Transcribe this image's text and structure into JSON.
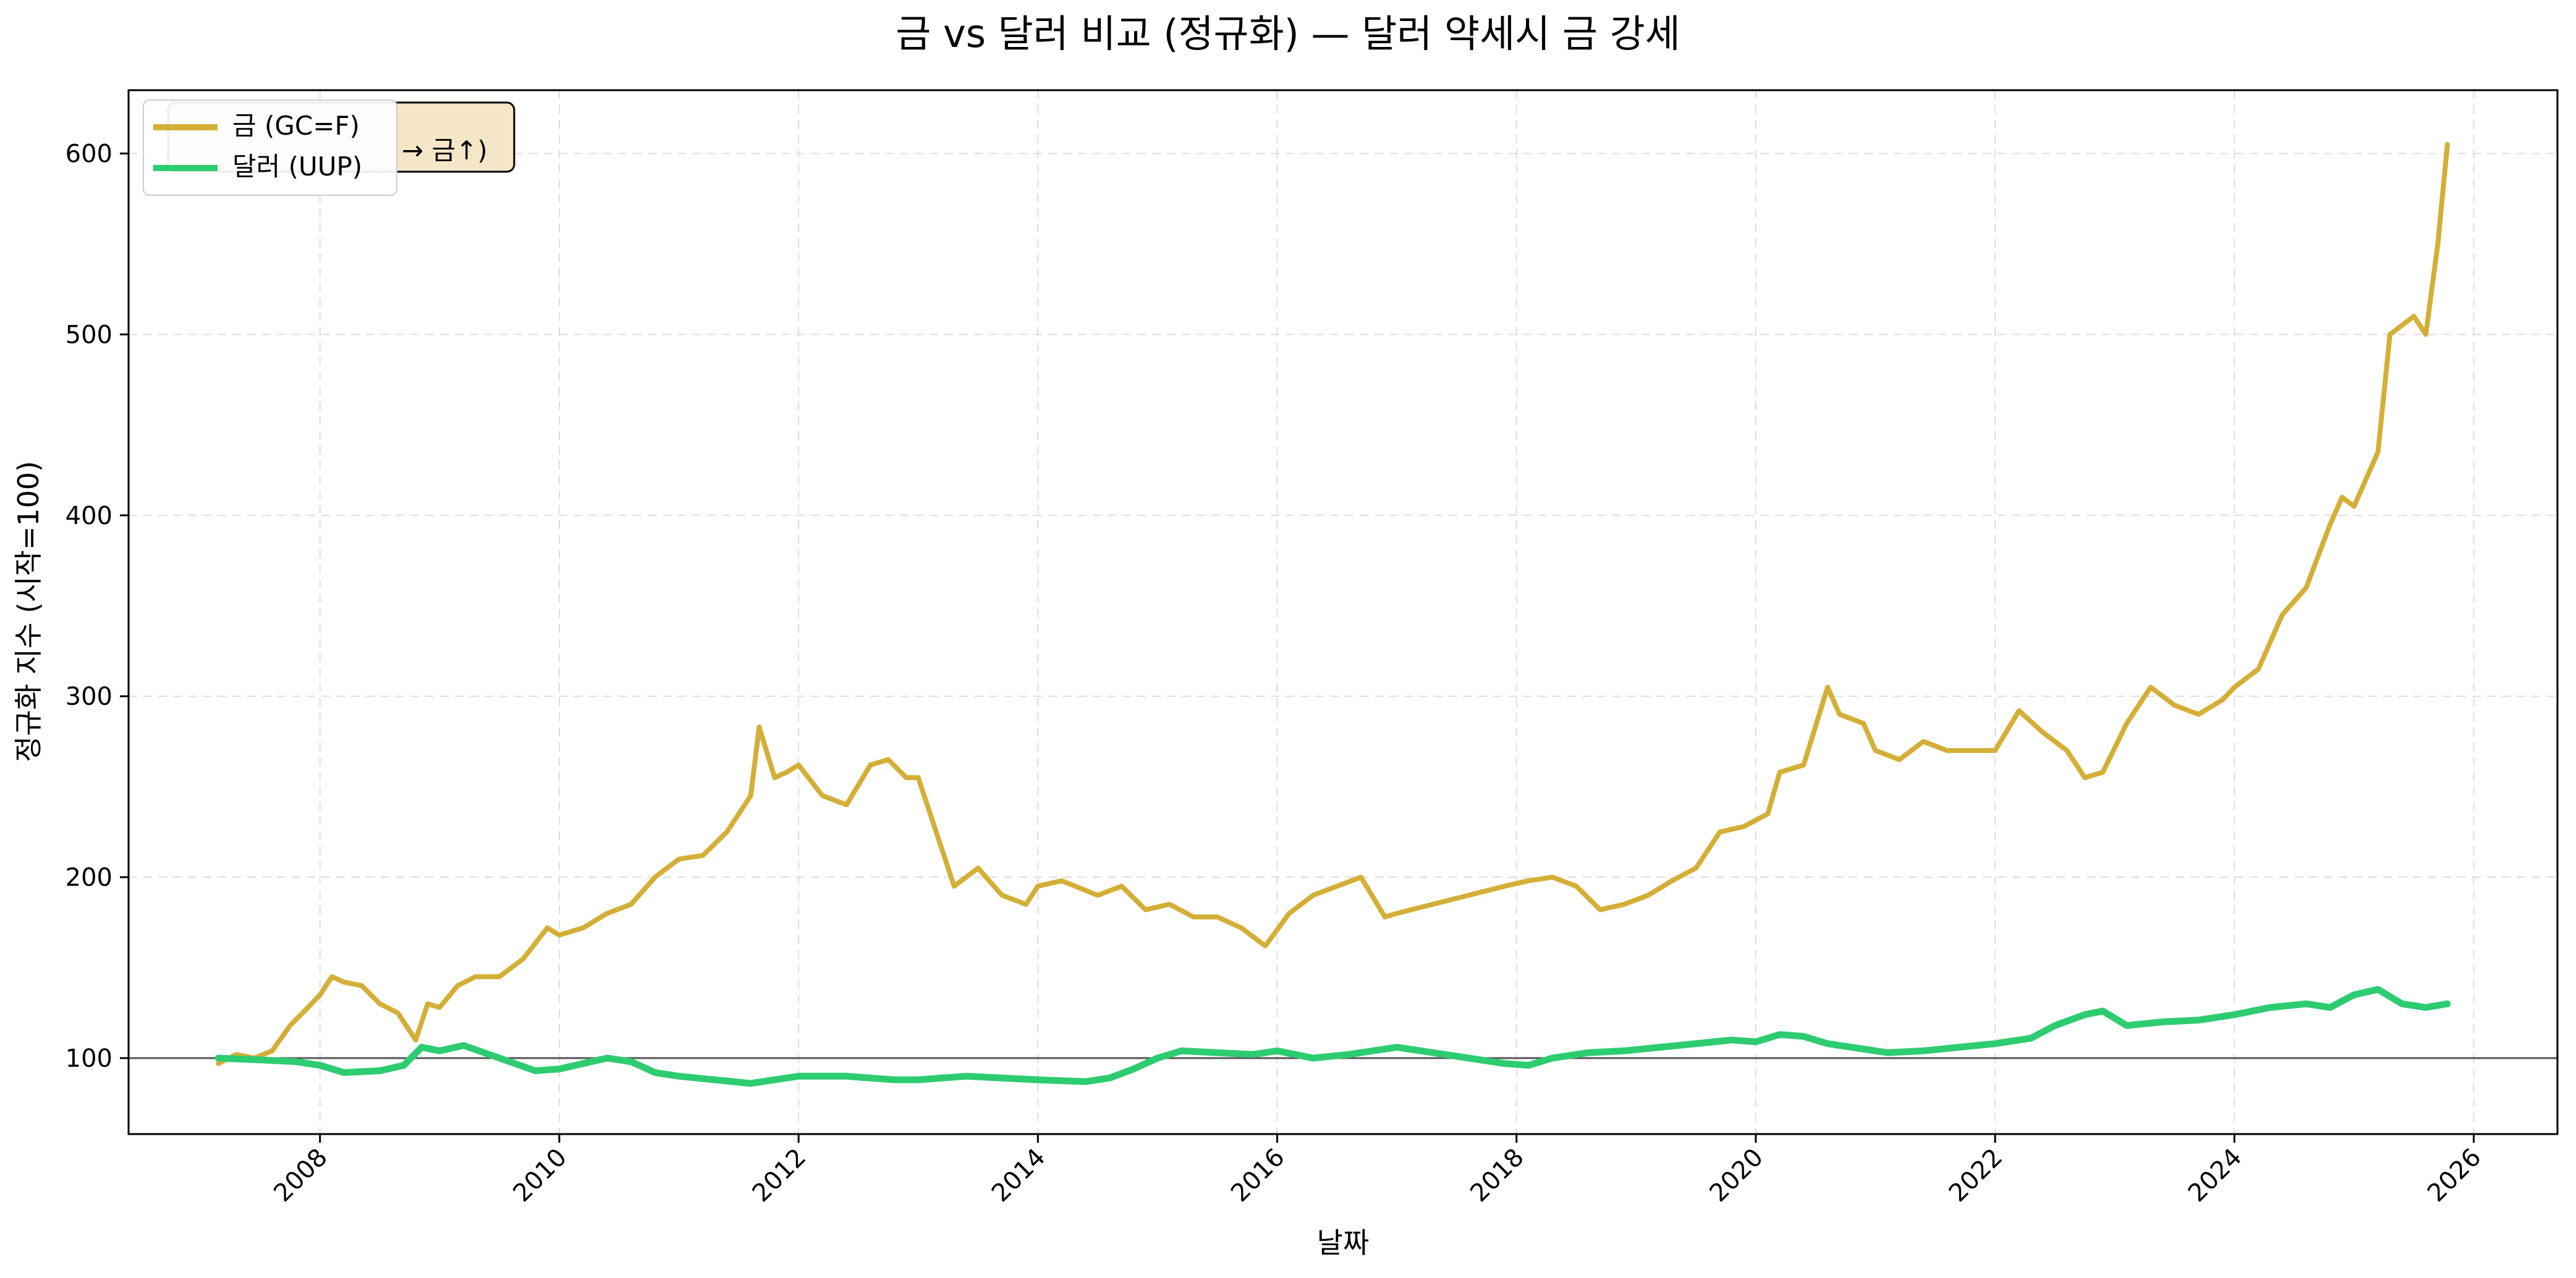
{
  "chart_data": {
    "type": "line",
    "title": "금 vs 달러 비교 (정규화) — 달러 약세시 금 강세",
    "xlabel": "날짜",
    "ylabel": "정규화 지수 (시작=100)",
    "xlim": [
      2006.4,
      2026.7
    ],
    "ylim": [
      58,
      635
    ],
    "x_ticks": [
      "2008",
      "2010",
      "2012",
      "2014",
      "2016",
      "2018",
      "2020",
      "2022",
      "2024",
      "2026"
    ],
    "y_ticks": [
      100,
      200,
      300,
      400,
      500,
      600
    ],
    "grid": true,
    "legend_position": "top-left",
    "reference_line": 100,
    "annotation": "→ 금↑)",
    "series": [
      {
        "name": "금 (GC=F)",
        "color": "#D4AF37",
        "x": [
          2007.15,
          2007.3,
          2007.45,
          2007.6,
          2007.75,
          2007.9,
          2008.0,
          2008.1,
          2008.2,
          2008.35,
          2008.5,
          2008.65,
          2008.8,
          2008.9,
          2009.0,
          2009.15,
          2009.3,
          2009.5,
          2009.7,
          2009.9,
          2010.0,
          2010.2,
          2010.4,
          2010.6,
          2010.8,
          2011.0,
          2011.2,
          2011.4,
          2011.6,
          2011.67,
          2011.8,
          2011.9,
          2012.0,
          2012.2,
          2012.4,
          2012.6,
          2012.75,
          2012.9,
          2013.0,
          2013.2,
          2013.3,
          2013.5,
          2013.7,
          2013.9,
          2014.0,
          2014.2,
          2014.5,
          2014.7,
          2014.9,
          2015.1,
          2015.3,
          2015.5,
          2015.7,
          2015.9,
          2016.1,
          2016.3,
          2016.5,
          2016.7,
          2016.9,
          2017.0,
          2017.3,
          2017.6,
          2017.9,
          2018.1,
          2018.3,
          2018.5,
          2018.7,
          2018.9,
          2019.1,
          2019.3,
          2019.5,
          2019.7,
          2019.9,
          2020.1,
          2020.2,
          2020.4,
          2020.6,
          2020.7,
          2020.9,
          2021.0,
          2021.2,
          2021.4,
          2021.6,
          2021.8,
          2022.0,
          2022.2,
          2022.4,
          2022.6,
          2022.75,
          2022.9,
          2023.1,
          2023.3,
          2023.5,
          2023.7,
          2023.9,
          2024.0,
          2024.2,
          2024.4,
          2024.6,
          2024.8,
          2024.9,
          2025.0,
          2025.2,
          2025.3,
          2025.5,
          2025.6,
          2025.7,
          2025.78
        ],
        "values": [
          97,
          102,
          100,
          104,
          118,
          128,
          135,
          145,
          142,
          140,
          130,
          125,
          110,
          130,
          128,
          140,
          145,
          145,
          155,
          172,
          168,
          172,
          180,
          185,
          200,
          210,
          212,
          225,
          245,
          283,
          255,
          258,
          262,
          245,
          240,
          262,
          265,
          255,
          255,
          215,
          195,
          205,
          190,
          185,
          195,
          198,
          190,
          195,
          182,
          185,
          178,
          178,
          172,
          162,
          180,
          190,
          195,
          200,
          178,
          180,
          185,
          190,
          195,
          198,
          200,
          195,
          182,
          185,
          190,
          198,
          205,
          225,
          228,
          235,
          258,
          262,
          305,
          290,
          285,
          270,
          265,
          275,
          270,
          270,
          270,
          292,
          280,
          270,
          255,
          258,
          285,
          305,
          295,
          290,
          298,
          305,
          315,
          345,
          360,
          395,
          410,
          405,
          435,
          500,
          510,
          500,
          550,
          605
        ]
      },
      {
        "name": "달러 (UUP)",
        "color": "#2ECC71",
        "x": [
          2007.15,
          2007.5,
          2007.8,
          2008.0,
          2008.2,
          2008.5,
          2008.7,
          2008.85,
          2009.0,
          2009.2,
          2009.5,
          2009.8,
          2010.0,
          2010.2,
          2010.4,
          2010.6,
          2010.8,
          2011.0,
          2011.3,
          2011.6,
          2011.8,
          2012.0,
          2012.4,
          2012.8,
          2013.0,
          2013.4,
          2013.7,
          2014.0,
          2014.4,
          2014.6,
          2014.8,
          2015.0,
          2015.2,
          2015.5,
          2015.8,
          2016.0,
          2016.3,
          2016.6,
          2016.9,
          2017.0,
          2017.3,
          2017.6,
          2017.9,
          2018.1,
          2018.3,
          2018.6,
          2018.9,
          2019.2,
          2019.5,
          2019.8,
          2020.0,
          2020.2,
          2020.4,
          2020.6,
          2020.9,
          2021.1,
          2021.4,
          2021.7,
          2022.0,
          2022.3,
          2022.5,
          2022.75,
          2022.9,
          2023.1,
          2023.4,
          2023.7,
          2024.0,
          2024.3,
          2024.6,
          2024.8,
          2025.0,
          2025.2,
          2025.4,
          2025.6,
          2025.78
        ],
        "values": [
          100,
          99,
          98,
          96,
          92,
          93,
          96,
          106,
          104,
          107,
          100,
          93,
          94,
          97,
          100,
          98,
          92,
          90,
          88,
          86,
          88,
          90,
          90,
          88,
          88,
          90,
          89,
          88,
          87,
          89,
          94,
          100,
          104,
          103,
          102,
          104,
          100,
          102,
          105,
          106,
          103,
          100,
          97,
          96,
          100,
          103,
          104,
          106,
          108,
          110,
          109,
          113,
          112,
          108,
          105,
          103,
          104,
          106,
          108,
          111,
          118,
          124,
          126,
          118,
          120,
          121,
          124,
          128,
          130,
          128,
          135,
          138,
          130,
          128,
          130
        ]
      }
    ]
  }
}
